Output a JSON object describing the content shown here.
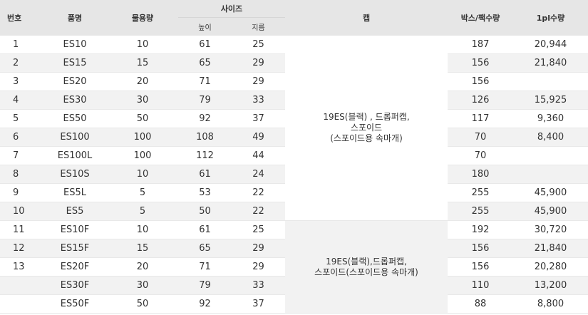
{
  "headers": {
    "no": "번호",
    "name": "품명",
    "volume": "물용량",
    "size": "사이즈",
    "height": "높이",
    "diameter": "지름",
    "cap": "캡",
    "box_qty": "박스/팩수량",
    "pl_qty": "1pl수량"
  },
  "cap_groups": [
    {
      "line1": "19ES(블랙) , 드롭퍼캡,",
      "line2": "스포이드",
      "line3": "(스포이드용 속마개)"
    },
    {
      "line1": "19ES(블랙),드롭퍼캡,",
      "line2": "스포이드(스포이드용 속마개)"
    }
  ],
  "rows": [
    {
      "no": "1",
      "name": "ES10",
      "volume": "10",
      "height": "61",
      "diameter": "25",
      "box_qty": "187",
      "pl_qty": "20,944"
    },
    {
      "no": "2",
      "name": "ES15",
      "volume": "15",
      "height": "65",
      "diameter": "29",
      "box_qty": "156",
      "pl_qty": "21,840"
    },
    {
      "no": "3",
      "name": "ES20",
      "volume": "20",
      "height": "71",
      "diameter": "29",
      "box_qty": "156",
      "pl_qty": ""
    },
    {
      "no": "4",
      "name": "ES30",
      "volume": "30",
      "height": "79",
      "diameter": "33",
      "box_qty": "126",
      "pl_qty": "15,925"
    },
    {
      "no": "5",
      "name": "ES50",
      "volume": "50",
      "height": "92",
      "diameter": "37",
      "box_qty": "117",
      "pl_qty": "9,360"
    },
    {
      "no": "6",
      "name": "ES100",
      "volume": "100",
      "height": "108",
      "diameter": "49",
      "box_qty": "70",
      "pl_qty": "8,400"
    },
    {
      "no": "7",
      "name": "ES100L",
      "volume": "100",
      "height": "112",
      "diameter": "44",
      "box_qty": "70",
      "pl_qty": ""
    },
    {
      "no": "8",
      "name": "ES10S",
      "volume": "10",
      "height": "61",
      "diameter": "24",
      "box_qty": "180",
      "pl_qty": ""
    },
    {
      "no": "9",
      "name": "ES5L",
      "volume": "5",
      "height": "53",
      "diameter": "22",
      "box_qty": "255",
      "pl_qty": "45,900"
    },
    {
      "no": "10",
      "name": "ES5",
      "volume": "5",
      "height": "50",
      "diameter": "22",
      "box_qty": "255",
      "pl_qty": "45,900"
    },
    {
      "no": "11",
      "name": "ES10F",
      "volume": "10",
      "height": "61",
      "diameter": "25",
      "box_qty": "192",
      "pl_qty": "30,720"
    },
    {
      "no": "12",
      "name": "ES15F",
      "volume": "15",
      "height": "65",
      "diameter": "29",
      "box_qty": "156",
      "pl_qty": "21,840"
    },
    {
      "no": "13",
      "name": "ES20F",
      "volume": "20",
      "height": "71",
      "diameter": "29",
      "box_qty": "156",
      "pl_qty": "20,280"
    },
    {
      "no": "",
      "name": "ES30F",
      "volume": "30",
      "height": "79",
      "diameter": "33",
      "box_qty": "110",
      "pl_qty": "13,200"
    },
    {
      "no": "",
      "name": "ES50F",
      "volume": "50",
      "height": "92",
      "diameter": "37",
      "box_qty": "88",
      "pl_qty": "8,800"
    }
  ]
}
